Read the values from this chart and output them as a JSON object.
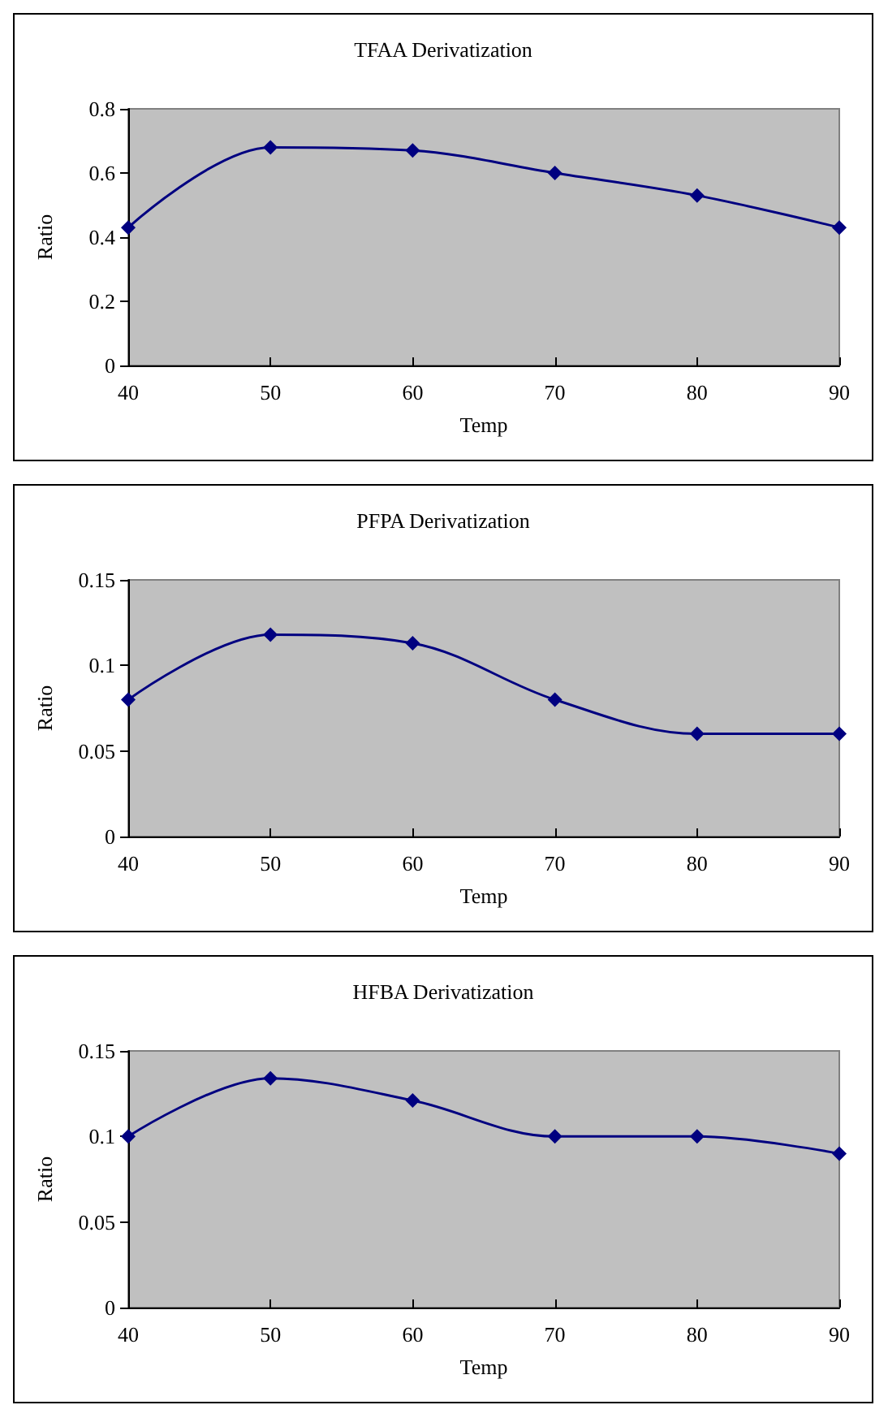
{
  "chart_data": [
    {
      "type": "line",
      "title": "TFAA Derivatization",
      "xlabel": "Temp",
      "ylabel": "Ratio",
      "x": [
        40,
        50,
        60,
        70,
        80,
        90
      ],
      "series": [
        {
          "color": "#000080",
          "values": [
            0.43,
            0.68,
            0.67,
            0.6,
            0.53,
            0.43
          ]
        }
      ],
      "xlim": [
        40,
        90
      ],
      "xticks": [
        40,
        50,
        60,
        70,
        80,
        90
      ],
      "ylim": [
        0,
        0.8
      ],
      "yticks": [
        0,
        0.2,
        0.4,
        0.6,
        0.8
      ],
      "grid": false,
      "marker": "diamond",
      "line_style": "solid"
    },
    {
      "type": "line",
      "title": "PFPA Derivatization",
      "xlabel": "Temp",
      "ylabel": "Ratio",
      "x": [
        40,
        50,
        60,
        70,
        80,
        90
      ],
      "series": [
        {
          "color": "#000080",
          "values": [
            0.08,
            0.118,
            0.113,
            0.08,
            0.06,
            0.06
          ]
        }
      ],
      "xlim": [
        40,
        90
      ],
      "xticks": [
        40,
        50,
        60,
        70,
        80,
        90
      ],
      "ylim": [
        0,
        0.15
      ],
      "yticks": [
        0,
        0.05,
        0.1,
        0.15
      ],
      "grid": false,
      "marker": "diamond",
      "line_style": "solid"
    },
    {
      "type": "line",
      "title": "HFBA Derivatization",
      "xlabel": "Temp",
      "ylabel": "Ratio",
      "x": [
        40,
        50,
        60,
        70,
        80,
        90
      ],
      "series": [
        {
          "color": "#000080",
          "values": [
            0.1,
            0.134,
            0.121,
            0.1,
            0.1,
            0.09
          ]
        }
      ],
      "xlim": [
        40,
        90
      ],
      "xticks": [
        40,
        50,
        60,
        70,
        80,
        90
      ],
      "ylim": [
        0,
        0.15
      ],
      "yticks": [
        0,
        0.05,
        0.1,
        0.15
      ],
      "grid": false,
      "marker": "diamond",
      "line_style": "solid"
    }
  ]
}
